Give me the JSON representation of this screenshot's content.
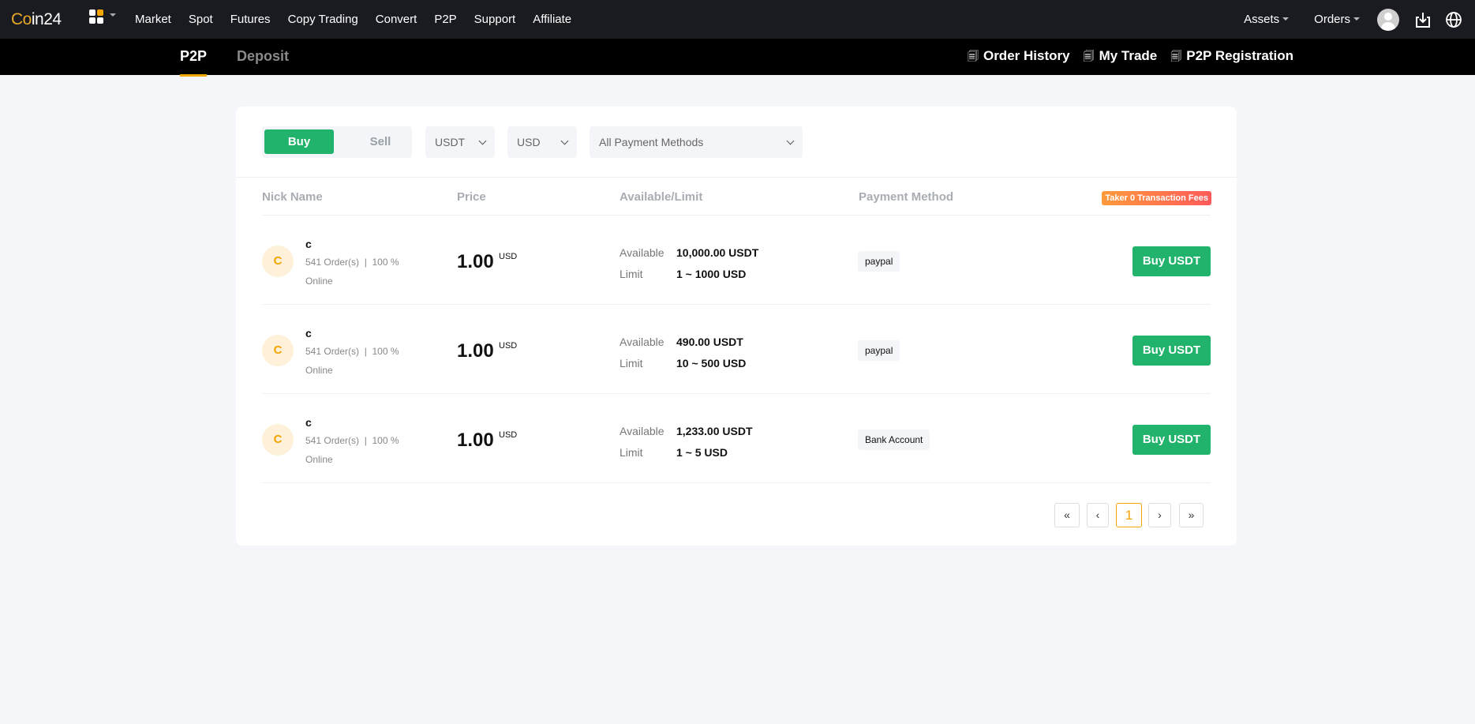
{
  "nav": {
    "logo": "Coin24",
    "logo_accent": "Co",
    "logo_rest": "in24",
    "menu": [
      "Market",
      "Spot",
      "Futures",
      "Copy Trading",
      "Convert",
      "P2P",
      "Support",
      "Affiliate"
    ],
    "assets": "Assets",
    "orders": "Orders"
  },
  "subnav": {
    "tabs": [
      "P2P",
      "Deposit"
    ],
    "links": [
      "Order History",
      "My Trade",
      "P2P Registration"
    ]
  },
  "filters": {
    "buy": "Buy",
    "sell": "Sell",
    "crypto": "USDT",
    "fiat": "USD",
    "payment": "All Payment Methods"
  },
  "table": {
    "headers": [
      "Nick Name",
      "Price",
      "Available/Limit",
      "Payment Method"
    ],
    "fee_badge": "Taker 0 Transaction Fees",
    "available_label": "Available",
    "limit_label": "Limit",
    "rows": [
      {
        "initial": "C",
        "nick": "c",
        "orders": "541 Order(s)",
        "rate": "100 %",
        "status": "Online",
        "price": "1.00",
        "currency": "USD",
        "available": "10,000.00 USDT",
        "limit": "1 ~ 1000 USD",
        "payment": "paypal",
        "action": "Buy USDT"
      },
      {
        "initial": "C",
        "nick": "c",
        "orders": "541 Order(s)",
        "rate": "100 %",
        "status": "Online",
        "price": "1.00",
        "currency": "USD",
        "available": "490.00 USDT",
        "limit": "10 ~ 500 USD",
        "payment": "paypal",
        "action": "Buy USDT"
      },
      {
        "initial": "C",
        "nick": "c",
        "orders": "541 Order(s)",
        "rate": "100 %",
        "status": "Online",
        "price": "1.00",
        "currency": "USD",
        "available": "1,233.00 USDT",
        "limit": "1 ~ 5 USD",
        "payment": "Bank Account",
        "action": "Buy USDT"
      }
    ]
  },
  "pagination": {
    "first": "«",
    "prev": "‹",
    "current": "1",
    "next": "›",
    "last": "»"
  },
  "colors": {
    "accent": "#21b26b",
    "brand": "#f0a500",
    "topbar": "#1a1b20"
  }
}
